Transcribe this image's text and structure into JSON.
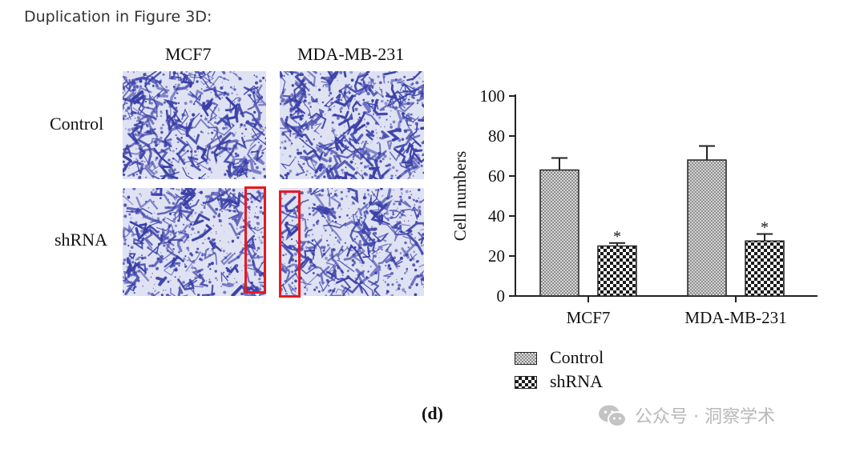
{
  "caption": "Duplication in Figure 3D:",
  "figure": {
    "column_labels": [
      "MCF7",
      "MDA-MB-231"
    ],
    "row_labels": [
      "Control",
      "shRNA"
    ],
    "panel_label": "(d)"
  },
  "chart_data": {
    "type": "bar",
    "categories": [
      "MCF7",
      "MDA-MB-231"
    ],
    "series": [
      {
        "name": "Control",
        "values": [
          63,
          68
        ],
        "errors": [
          6,
          7
        ],
        "pattern": "dense-crosshatch"
      },
      {
        "name": "shRNA",
        "values": [
          25,
          27.5
        ],
        "errors": [
          1.5,
          3.5
        ],
        "pattern": "checkerboard",
        "significance": [
          "*",
          "*"
        ]
      }
    ],
    "xlabel": "",
    "ylabel": "Cell numbers",
    "ylim": [
      0,
      100
    ],
    "yticks": [
      0,
      20,
      40,
      60,
      80,
      100
    ],
    "legend": "bottom-left",
    "grid": false
  },
  "watermark": {
    "icon": "wechat-icon",
    "text": "公众号 · 洞察学术"
  },
  "colors": {
    "stain": "#3a3fa8",
    "background_field": "#dfe2f3",
    "highlight": "#e8191f"
  }
}
